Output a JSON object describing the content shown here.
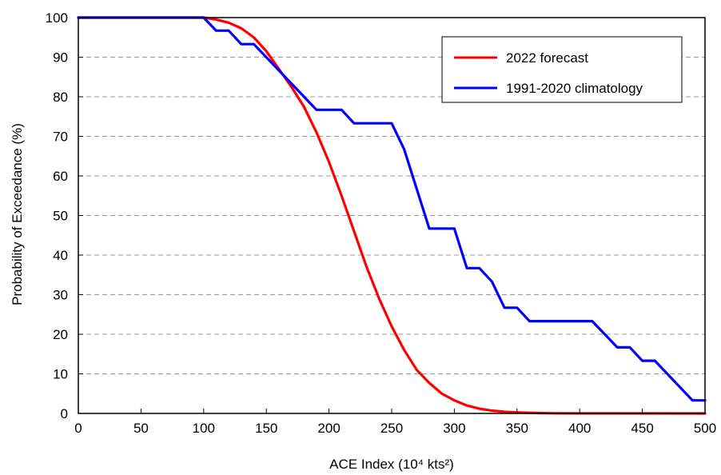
{
  "chart_data": {
    "type": "line",
    "xlabel": "ACE Index (10⁴ kts²)",
    "ylabel": "Probability of Exceedance (%)",
    "xlim": [
      0,
      500
    ],
    "ylim": [
      0,
      100
    ],
    "xticks": [
      0,
      50,
      100,
      150,
      200,
      250,
      300,
      350,
      400,
      450,
      500
    ],
    "yticks": [
      0,
      10,
      20,
      30,
      40,
      50,
      60,
      70,
      80,
      90,
      100
    ],
    "grid": "horizontal dashed",
    "legend_position": "top-right",
    "series": [
      {
        "name": "2022 forecast",
        "color": "#ff0000",
        "x": [
          0,
          100,
          110,
          120,
          130,
          140,
          150,
          160,
          170,
          180,
          190,
          200,
          210,
          220,
          230,
          240,
          250,
          260,
          270,
          280,
          290,
          300,
          310,
          320,
          330,
          340,
          350,
          360,
          370,
          380,
          400,
          500
        ],
        "y": [
          100,
          100,
          99.5,
          98.7,
          97.3,
          95.0,
          91.5,
          87.0,
          82.5,
          77.5,
          71.0,
          63.5,
          55.0,
          46.0,
          37.0,
          29.0,
          22.0,
          16.0,
          11.0,
          7.7,
          5.0,
          3.3,
          2.0,
          1.2,
          0.7,
          0.4,
          0.25,
          0.15,
          0.08,
          0.04,
          0.01,
          0
        ]
      },
      {
        "name": "1991-2020 climatology",
        "color": "#0000ff",
        "x": [
          0,
          100,
          110,
          120,
          130,
          140,
          190,
          210,
          220,
          250,
          260,
          270,
          280,
          300,
          310,
          320,
          330,
          340,
          350,
          360,
          410,
          430,
          440,
          450,
          460,
          490,
          500
        ],
        "y": [
          100,
          100,
          96.7,
          96.7,
          93.3,
          93.3,
          76.7,
          76.7,
          73.3,
          73.3,
          66.7,
          56.7,
          46.7,
          46.7,
          36.7,
          36.7,
          33.3,
          26.7,
          26.7,
          23.3,
          23.3,
          16.7,
          16.7,
          13.3,
          13.3,
          3.3,
          3.3
        ]
      }
    ]
  }
}
